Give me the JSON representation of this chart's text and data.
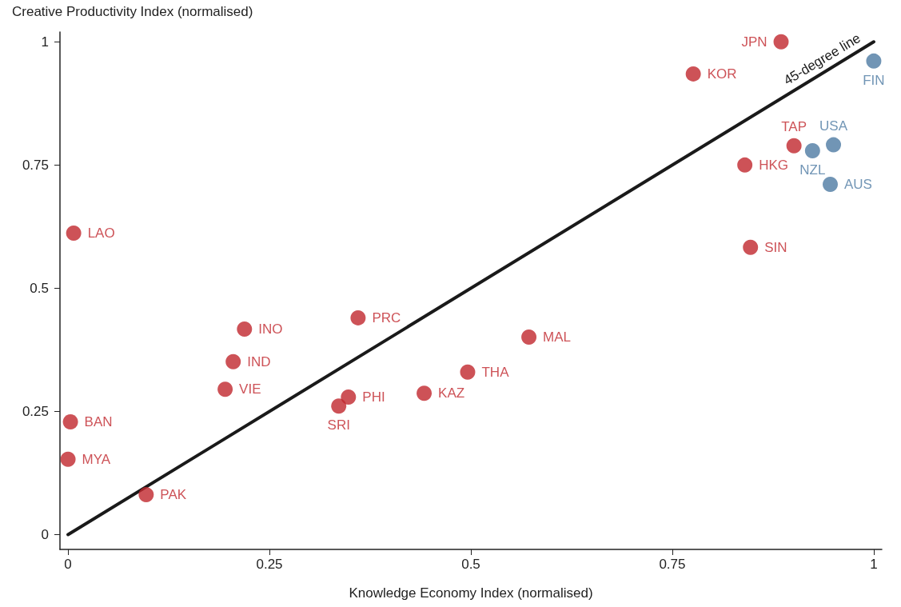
{
  "chart_data": {
    "type": "scatter",
    "xlabel": "Knowledge Economy Index (normalised)",
    "ylabel": "Creative Productivity Index (normalised)",
    "xlim": [
      -0.01,
      1.01
    ],
    "ylim": [
      -0.03,
      1.02
    ],
    "xticks": [
      0,
      0.25,
      0.5,
      0.75,
      1
    ],
    "yticks": [
      0,
      0.25,
      0.5,
      0.75,
      1
    ],
    "grid": false,
    "marker": "circle",
    "series": [
      {
        "color": "#c0272d",
        "x": [
          0.885,
          0.776,
          0.901,
          0.84,
          0.847,
          0.007,
          0.219,
          0.36,
          0.572,
          0.205,
          0.195,
          0.496,
          0.442,
          0.348,
          0.336,
          0.003,
          0.0,
          0.097
        ],
        "values": [
          1.0,
          0.935,
          0.789,
          0.75,
          0.583,
          0.612,
          0.417,
          0.44,
          0.401,
          0.351,
          0.295,
          0.33,
          0.287,
          0.279,
          0.261,
          0.229,
          0.153,
          0.081
        ],
        "value_labels": [
          "JPN",
          "KOR",
          "TAP",
          "HKG",
          "SIN",
          "LAO",
          "INO",
          "PRC",
          "MAL",
          "IND",
          "VIE",
          "THA",
          "KAZ",
          "PHI",
          "SRI",
          "BAN",
          "MYA",
          "PAK"
        ]
      },
      {
        "color": "#4d7aa3",
        "x": [
          1.0,
          0.95,
          0.924,
          0.946
        ],
        "values": [
          0.961,
          0.791,
          0.779,
          0.711
        ],
        "value_labels": [
          "FIN",
          "USA",
          "NZL",
          "AUS"
        ]
      },
      {
        "type": "line",
        "name": "45-degree line",
        "color": "#1a1a1a",
        "marker": "none",
        "x": [
          0,
          1
        ],
        "values": [
          0,
          1
        ]
      }
    ]
  }
}
